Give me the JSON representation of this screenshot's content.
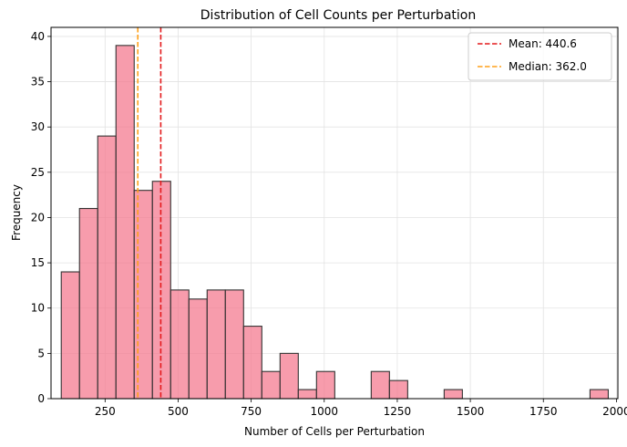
{
  "chart_data": {
    "type": "bar",
    "title": "Distribution of Cell Counts per Perturbation",
    "xlabel": "Number of Cells per Perturbation",
    "ylabel": "Frequency",
    "xlim": [
      65,
      2005
    ],
    "ylim": [
      0,
      41
    ],
    "xticks": [
      250,
      500,
      750,
      1000,
      1250,
      1500,
      1750,
      2000
    ],
    "yticks": [
      0,
      5,
      10,
      15,
      20,
      25,
      30,
      35,
      40
    ],
    "grid": true,
    "bar_color": "#f4768c",
    "bin_width": 62.4,
    "bins": [
      {
        "x0": 100.0,
        "count": 14
      },
      {
        "x0": 162.4,
        "count": 21
      },
      {
        "x0": 224.8,
        "count": 29
      },
      {
        "x0": 287.2,
        "count": 39
      },
      {
        "x0": 349.6,
        "count": 23
      },
      {
        "x0": 412.0,
        "count": 24
      },
      {
        "x0": 474.4,
        "count": 12
      },
      {
        "x0": 536.8,
        "count": 11
      },
      {
        "x0": 599.2,
        "count": 12
      },
      {
        "x0": 661.6,
        "count": 12
      },
      {
        "x0": 724.0,
        "count": 8
      },
      {
        "x0": 786.4,
        "count": 3
      },
      {
        "x0": 848.8,
        "count": 5
      },
      {
        "x0": 911.2,
        "count": 1
      },
      {
        "x0": 973.6,
        "count": 3
      },
      {
        "x0": 1036.0,
        "count": 0
      },
      {
        "x0": 1098.4,
        "count": 0
      },
      {
        "x0": 1160.8,
        "count": 3
      },
      {
        "x0": 1223.2,
        "count": 2
      },
      {
        "x0": 1285.6,
        "count": 0
      },
      {
        "x0": 1348.0,
        "count": 0
      },
      {
        "x0": 1410.4,
        "count": 1
      },
      {
        "x0": 1472.8,
        "count": 0
      },
      {
        "x0": 1535.2,
        "count": 0
      },
      {
        "x0": 1597.6,
        "count": 0
      },
      {
        "x0": 1660.0,
        "count": 0
      },
      {
        "x0": 1722.4,
        "count": 0
      },
      {
        "x0": 1784.8,
        "count": 0
      },
      {
        "x0": 1847.2,
        "count": 0
      },
      {
        "x0": 1909.6,
        "count": 1
      }
    ],
    "reference_lines": [
      {
        "label": "Mean: 440.6",
        "value": 440.6,
        "color": "#e41a1c",
        "style": "dashed"
      },
      {
        "label": "Median: 362.0",
        "value": 362.0,
        "color": "#ffa01a",
        "style": "dashed"
      }
    ],
    "legend_position": "top-right"
  }
}
